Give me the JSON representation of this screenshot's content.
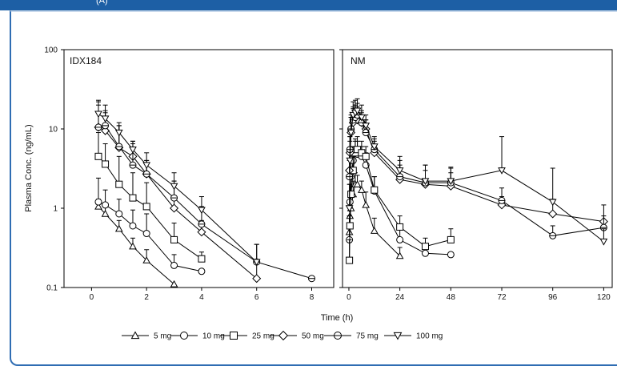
{
  "banner": {
    "text": "(A)"
  },
  "chart_data": {
    "type": "line",
    "ylabel": "Plasma Conc. (ng/mL)",
    "xlabel": "Time (h)",
    "yscale": "log",
    "ylim": [
      0.1,
      100
    ],
    "yticks": [
      "0.1",
      "1",
      "10",
      "100"
    ],
    "series_styles": [
      {
        "name": "5 mg",
        "marker": "triangle-up"
      },
      {
        "name": "10 mg",
        "marker": "circle"
      },
      {
        "name": "25 mg",
        "marker": "square"
      },
      {
        "name": "50 mg",
        "marker": "diamond"
      },
      {
        "name": "75 mg",
        "marker": "hexagon"
      },
      {
        "name": "100 mg",
        "marker": "triangle-down"
      }
    ],
    "panels": [
      {
        "title": "IDX184",
        "xlim": [
          -1,
          8.8
        ],
        "xticks": [
          0,
          2,
          4,
          6,
          8
        ],
        "series": [
          {
            "name": "5 mg",
            "x": [
              0.25,
              0.5,
              1,
              1.5,
              2,
              3
            ],
            "y": [
              1.05,
              0.85,
              0.55,
              0.33,
              0.22,
              0.11
            ],
            "err": [
              1.3,
              1.1,
              0.7,
              0.42,
              0.3,
              0
            ]
          },
          {
            "name": "10 mg",
            "x": [
              0.25,
              0.5,
              1,
              1.5,
              2,
              3,
              4
            ],
            "y": [
              1.2,
              1.1,
              0.85,
              0.6,
              0.48,
              0.19,
              0.16
            ],
            "err": [
              2.4,
              1.7,
              1.3,
              0.95,
              0.85,
              0.26,
              0
            ]
          },
          {
            "name": "25 mg",
            "x": [
              0.25,
              0.5,
              1,
              1.5,
              2,
              3,
              4
            ],
            "y": [
              4.5,
              3.6,
              2.0,
              1.35,
              1.05,
              0.4,
              0.23
            ],
            "err": [
              9.0,
              6.5,
              4.5,
              2.8,
              2.1,
              0.65,
              0.28
            ]
          },
          {
            "name": "50 mg",
            "x": [
              0.25,
              0.5,
              1,
              1.5,
              2,
              3,
              4,
              6
            ],
            "y": [
              10.5,
              9.5,
              5.8,
              4.5,
              2.7,
              1.0,
              0.5,
              0.13
            ],
            "err": [
              22,
              16,
              11,
              7,
              4,
              2.2,
              0.7,
              0.2
            ]
          },
          {
            "name": "75 mg",
            "x": [
              0.25,
              0.5,
              1,
              1.5,
              2,
              3,
              4,
              6,
              8
            ],
            "y": [
              10.5,
              11.0,
              6.0,
              3.5,
              2.7,
              1.35,
              0.63,
              0.21,
              0.13
            ],
            "err": [
              20,
              17,
              11,
              6.5,
              4,
              2.2,
              1.05,
              0.35,
              0
            ]
          },
          {
            "name": "100 mg",
            "x": [
              0.25,
              0.5,
              1,
              1.5,
              2,
              3,
              4,
              6
            ],
            "y": [
              15.5,
              13.5,
              9.0,
              5.5,
              3.5,
              1.9,
              0.95,
              0.21
            ],
            "err": [
              23,
              20,
              12,
              7,
              5,
              2.8,
              1.4,
              0.35
            ]
          }
        ]
      },
      {
        "title": "NM",
        "xlim": [
          -3,
          124
        ],
        "xticks": [
          0,
          24,
          48,
          72,
          96,
          120
        ],
        "series": [
          {
            "name": "5 mg",
            "x": [
              0.25,
              0.5,
              1,
              2,
              3,
              4,
              6,
              8,
              12,
              24
            ],
            "y": [
              0.5,
              0.8,
              1.0,
              1.5,
              2.0,
              2.0,
              1.7,
              1.1,
              0.52,
              0.25
            ],
            "err": [
              0.8,
              1.2,
              1.6,
              2.2,
              2.8,
              2.6,
              2.2,
              1.6,
              0.75,
              0.32
            ]
          },
          {
            "name": "10 mg",
            "x": [
              0.25,
              0.5,
              1,
              2,
              3,
              4,
              6,
              8,
              12,
              24,
              36,
              48
            ],
            "y": [
              0.4,
              1.2,
              2.5,
              4.0,
              5.0,
              4.8,
              4.5,
              3.5,
              1.65,
              0.4,
              0.27,
              0.26
            ],
            "err": [
              0.8,
              2.0,
              4.0,
              6.0,
              7.5,
              7.0,
              6.0,
              5.0,
              2.5,
              0.55,
              0.35,
              0
            ]
          },
          {
            "name": "25 mg",
            "x": [
              0.25,
              0.5,
              1,
              2,
              3,
              4,
              6,
              8,
              12,
              24,
              36,
              48
            ],
            "y": [
              0.22,
              0.6,
              1.5,
              3.0,
              5.0,
              5.5,
              5.0,
              4.5,
              1.7,
              0.58,
              0.33,
              0.4
            ],
            "err": [
              0.4,
              1.0,
              2.5,
              4.5,
              7.0,
              8.0,
              7.0,
              6.0,
              2.5,
              0.8,
              0.42,
              0.55
            ]
          },
          {
            "name": "50 mg",
            "x": [
              0.25,
              0.5,
              1,
              2,
              3,
              4,
              6,
              8,
              12,
              24,
              36,
              48,
              72,
              96,
              120
            ],
            "y": [
              3.0,
              5.0,
              9.0,
              12.0,
              14.0,
              13.0,
              12.0,
              10.0,
              5.0,
              2.3,
              2.0,
              1.9,
              1.1,
              0.85,
              0.68
            ],
            "err": [
              5.0,
              8.0,
              14.0,
              18.0,
              20.0,
              19.0,
              16.0,
              13.0,
              7.0,
              3.5,
              3.0,
              2.8,
              1.4,
              1.3,
              1.1
            ]
          },
          {
            "name": "75 mg",
            "x": [
              0.25,
              0.5,
              1,
              2,
              3,
              4,
              6,
              8,
              12,
              24,
              36,
              48,
              72,
              96,
              120
            ],
            "y": [
              2.5,
              5.5,
              10.0,
              13.0,
              14.0,
              15.0,
              12.0,
              9.0,
              5.5,
              2.5,
              2.1,
              2.1,
              1.25,
              0.45,
              0.57
            ],
            "err": [
              4.0,
              8.0,
              15.0,
              19.0,
              20.0,
              21.0,
              17.0,
              13.0,
              7.5,
              4.0,
              3.5,
              3.2,
              1.8,
              0.6,
              0.8
            ]
          },
          {
            "name": "100 mg",
            "x": [
              0.25,
              0.5,
              1,
              2,
              3,
              4,
              6,
              8,
              12,
              24,
              36,
              48,
              72,
              96,
              120
            ],
            "y": [
              1.0,
              4.0,
              9.0,
              15.0,
              16.0,
              17.0,
              14.0,
              11.0,
              6.0,
              3.0,
              2.2,
              2.2,
              3.0,
              1.2,
              0.38
            ],
            "err": [
              2.0,
              7.0,
              14.0,
              22.0,
              23.0,
              24.0,
              20.0,
              15.0,
              8.0,
              4.5,
              3.5,
              3.3,
              8.0,
              3.2,
              0.55
            ]
          }
        ]
      }
    ]
  }
}
